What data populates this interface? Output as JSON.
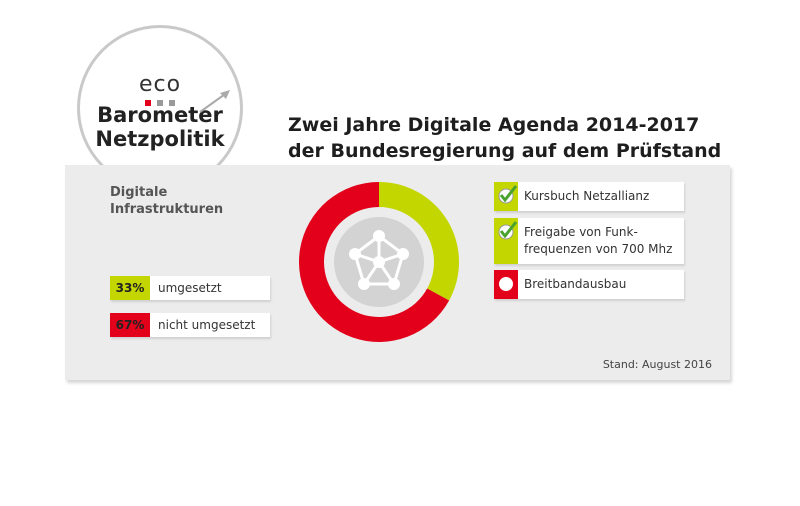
{
  "logo": {
    "brand": "eco",
    "lines": [
      "Barometer",
      "Netzpolitik"
    ]
  },
  "title": [
    "Zwei Jahre Digitale Agenda 2014-2017",
    "der Bundesregierung auf dem Prüfstand"
  ],
  "chart_data": {
    "type": "pie",
    "donut": true,
    "subtitle": "Digitale Infrastrukturen",
    "categories": [
      "umgesetzt",
      "nicht umgesetzt"
    ],
    "values": [
      33,
      67
    ],
    "value_labels": [
      "33%",
      "67%"
    ],
    "colors": [
      "#c3d600",
      "#e2001a"
    ]
  },
  "checklist": [
    {
      "label": "Kursbuch Netzallianz",
      "done": true
    },
    {
      "label": "Freigabe von Funk-\nfrequenzen von 700 Mhz",
      "done": true
    },
    {
      "label": "Breitbandausbau",
      "done": false
    }
  ],
  "footer": "Stand: August 2016"
}
